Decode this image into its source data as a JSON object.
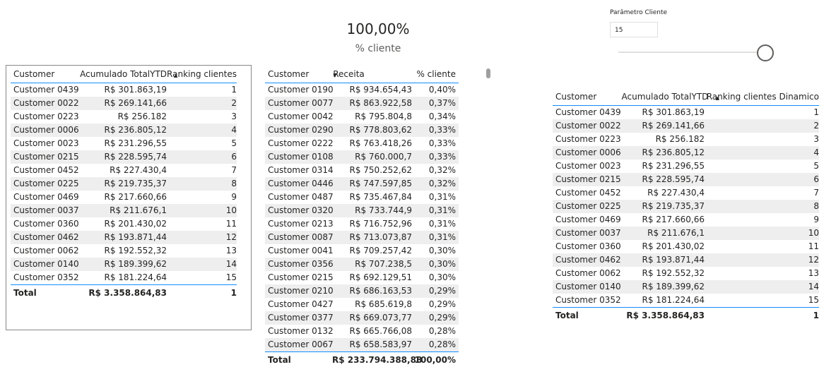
{
  "kpi": {
    "value": "100,00%",
    "label": "% cliente"
  },
  "slicer": {
    "title": "Parâmetro Cliente",
    "value": "15",
    "slider_value": 15
  },
  "table1": {
    "headers": [
      "Customer",
      "Acumulado TotalYTD",
      "Ranking clientes"
    ],
    "rows": [
      [
        "Customer 0439",
        "R$ 301.863,19",
        "1"
      ],
      [
        "Customer 0022",
        "R$ 269.141,66",
        "2"
      ],
      [
        "Customer 0223",
        "R$ 256.182",
        "3"
      ],
      [
        "Customer 0006",
        "R$ 236.805,12",
        "4"
      ],
      [
        "Customer 0023",
        "R$ 231.296,55",
        "5"
      ],
      [
        "Customer 0215",
        "R$ 228.595,74",
        "6"
      ],
      [
        "Customer 0452",
        "R$ 227.430,4",
        "7"
      ],
      [
        "Customer 0225",
        "R$ 219.735,37",
        "8"
      ],
      [
        "Customer 0469",
        "R$ 217.660,66",
        "9"
      ],
      [
        "Customer 0037",
        "R$ 211.676,1",
        "10"
      ],
      [
        "Customer 0360",
        "R$ 201.430,02",
        "11"
      ],
      [
        "Customer 0462",
        "R$ 193.871,44",
        "12"
      ],
      [
        "Customer 0062",
        "R$ 192.552,32",
        "13"
      ],
      [
        "Customer 0140",
        "R$ 189.399,62",
        "14"
      ],
      [
        "Customer 0352",
        "R$ 181.224,64",
        "15"
      ]
    ],
    "total": [
      "Total",
      "R$ 3.358.864,83",
      "1"
    ]
  },
  "table2": {
    "headers": [
      "Customer",
      "Receita",
      "% cliente"
    ],
    "rows": [
      [
        "Customer 0190",
        "R$ 934.654,43",
        "0,40%"
      ],
      [
        "Customer 0077",
        "R$ 863.922,58",
        "0,37%"
      ],
      [
        "Customer 0042",
        "R$ 795.804,8",
        "0,34%"
      ],
      [
        "Customer 0290",
        "R$ 778.803,62",
        "0,33%"
      ],
      [
        "Customer 0222",
        "R$ 763.418,26",
        "0,33%"
      ],
      [
        "Customer 0108",
        "R$ 760.000,7",
        "0,33%"
      ],
      [
        "Customer 0314",
        "R$ 750.252,62",
        "0,32%"
      ],
      [
        "Customer 0446",
        "R$ 747.597,85",
        "0,32%"
      ],
      [
        "Customer 0487",
        "R$ 735.467,84",
        "0,31%"
      ],
      [
        "Customer 0320",
        "R$ 733.744,9",
        "0,31%"
      ],
      [
        "Customer 0213",
        "R$ 716.752,96",
        "0,31%"
      ],
      [
        "Customer 0087",
        "R$ 713.073,87",
        "0,31%"
      ],
      [
        "Customer 0041",
        "R$ 709.257,42",
        "0,30%"
      ],
      [
        "Customer 0356",
        "R$ 707.238,5",
        "0,30%"
      ],
      [
        "Customer 0215",
        "R$ 692.129,51",
        "0,30%"
      ],
      [
        "Customer 0210",
        "R$ 686.163,53",
        "0,29%"
      ],
      [
        "Customer 0427",
        "R$ 685.619,8",
        "0,29%"
      ],
      [
        "Customer 0377",
        "R$ 669.073,77",
        "0,29%"
      ],
      [
        "Customer 0132",
        "R$ 665.766,08",
        "0,28%"
      ],
      [
        "Customer 0067",
        "R$ 658.583,97",
        "0,28%"
      ]
    ],
    "total": [
      "Total",
      "R$ 233.794.388,88",
      "100,00%"
    ]
  },
  "table3": {
    "headers": [
      "Customer",
      "Acumulado TotalYTD",
      "Ranking clientes Dinamico"
    ],
    "rows": [
      [
        "Customer 0439",
        "R$ 301.863,19",
        "1"
      ],
      [
        "Customer 0022",
        "R$ 269.141,66",
        "2"
      ],
      [
        "Customer 0223",
        "R$ 256.182",
        "3"
      ],
      [
        "Customer 0006",
        "R$ 236.805,12",
        "4"
      ],
      [
        "Customer 0023",
        "R$ 231.296,55",
        "5"
      ],
      [
        "Customer 0215",
        "R$ 228.595,74",
        "6"
      ],
      [
        "Customer 0452",
        "R$ 227.430,4",
        "7"
      ],
      [
        "Customer 0225",
        "R$ 219.735,37",
        "8"
      ],
      [
        "Customer 0469",
        "R$ 217.660,66",
        "9"
      ],
      [
        "Customer 0037",
        "R$ 211.676,1",
        "10"
      ],
      [
        "Customer 0360",
        "R$ 201.430,02",
        "11"
      ],
      [
        "Customer 0462",
        "R$ 193.871,44",
        "12"
      ],
      [
        "Customer 0062",
        "R$ 192.552,32",
        "13"
      ],
      [
        "Customer 0140",
        "R$ 189.399,62",
        "14"
      ],
      [
        "Customer 0352",
        "R$ 181.224,64",
        "15"
      ]
    ],
    "total": [
      "Total",
      "R$ 3.358.864,83",
      "1"
    ]
  },
  "icons": {
    "sort": "sort-descending-icon"
  }
}
